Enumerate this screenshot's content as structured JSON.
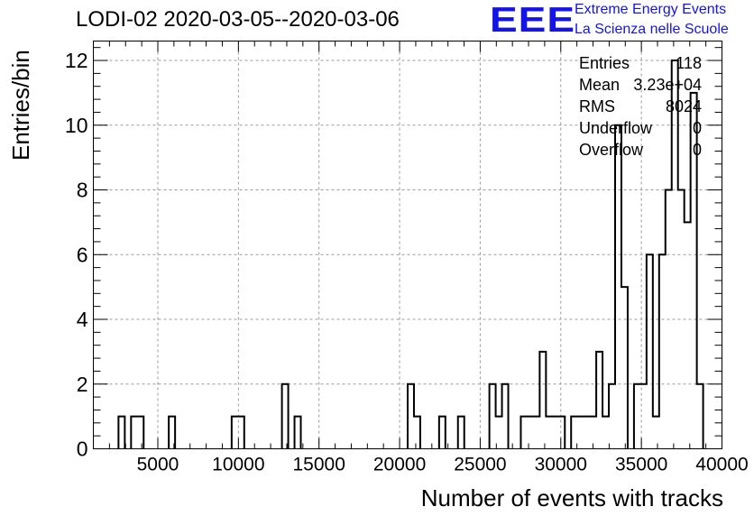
{
  "title": "LODI-02 2020-03-05--2020-03-06",
  "logo": {
    "text": "EEE",
    "line1": "Extreme Energy Events",
    "line2": "La Scienza nelle Scuole",
    "color": "#1414e6"
  },
  "stats": [
    {
      "label": "Entries",
      "value": "118"
    },
    {
      "label": "Mean",
      "value": "3.23e+04"
    },
    {
      "label": "RMS",
      "value": "8024"
    },
    {
      "label": "Underflow",
      "value": "0"
    },
    {
      "label": "Overflow",
      "value": "0"
    }
  ],
  "chart_data": {
    "type": "histogram",
    "title": "LODI-02 2020-03-05--2020-03-06",
    "xlabel": "Number of events with tracks",
    "ylabel": "Entries/bin",
    "xlim": [
      1000,
      40000
    ],
    "ylim": [
      0,
      12.6
    ],
    "xticks": [
      5000,
      10000,
      15000,
      20000,
      25000,
      30000,
      35000,
      40000
    ],
    "yticks": [
      0,
      2,
      4,
      6,
      8,
      10,
      12
    ],
    "grid": true,
    "legend": "none",
    "bin_width": 390,
    "bins": [
      {
        "x": 2560,
        "y": 1
      },
      {
        "x": 3340,
        "y": 1
      },
      {
        "x": 3730,
        "y": 1
      },
      {
        "x": 5680,
        "y": 1
      },
      {
        "x": 9580,
        "y": 1
      },
      {
        "x": 9970,
        "y": 1
      },
      {
        "x": 12700,
        "y": 2
      },
      {
        "x": 13480,
        "y": 1
      },
      {
        "x": 20500,
        "y": 2
      },
      {
        "x": 20890,
        "y": 1
      },
      {
        "x": 22450,
        "y": 1
      },
      {
        "x": 23620,
        "y": 1
      },
      {
        "x": 25570,
        "y": 2
      },
      {
        "x": 25960,
        "y": 1
      },
      {
        "x": 26350,
        "y": 2
      },
      {
        "x": 27520,
        "y": 1
      },
      {
        "x": 27910,
        "y": 1
      },
      {
        "x": 28300,
        "y": 1
      },
      {
        "x": 28690,
        "y": 3
      },
      {
        "x": 29080,
        "y": 1
      },
      {
        "x": 29470,
        "y": 1
      },
      {
        "x": 29860,
        "y": 1
      },
      {
        "x": 30640,
        "y": 1
      },
      {
        "x": 31030,
        "y": 1
      },
      {
        "x": 31420,
        "y": 1
      },
      {
        "x": 31810,
        "y": 1
      },
      {
        "x": 32200,
        "y": 3
      },
      {
        "x": 32590,
        "y": 1
      },
      {
        "x": 32980,
        "y": 2
      },
      {
        "x": 33370,
        "y": 10
      },
      {
        "x": 33760,
        "y": 5
      },
      {
        "x": 34540,
        "y": 2
      },
      {
        "x": 34930,
        "y": 2
      },
      {
        "x": 35320,
        "y": 6
      },
      {
        "x": 35710,
        "y": 1
      },
      {
        "x": 36100,
        "y": 6
      },
      {
        "x": 36490,
        "y": 8
      },
      {
        "x": 36880,
        "y": 12
      },
      {
        "x": 37270,
        "y": 8
      },
      {
        "x": 37660,
        "y": 7
      },
      {
        "x": 38050,
        "y": 11
      },
      {
        "x": 38440,
        "y": 2
      }
    ]
  }
}
